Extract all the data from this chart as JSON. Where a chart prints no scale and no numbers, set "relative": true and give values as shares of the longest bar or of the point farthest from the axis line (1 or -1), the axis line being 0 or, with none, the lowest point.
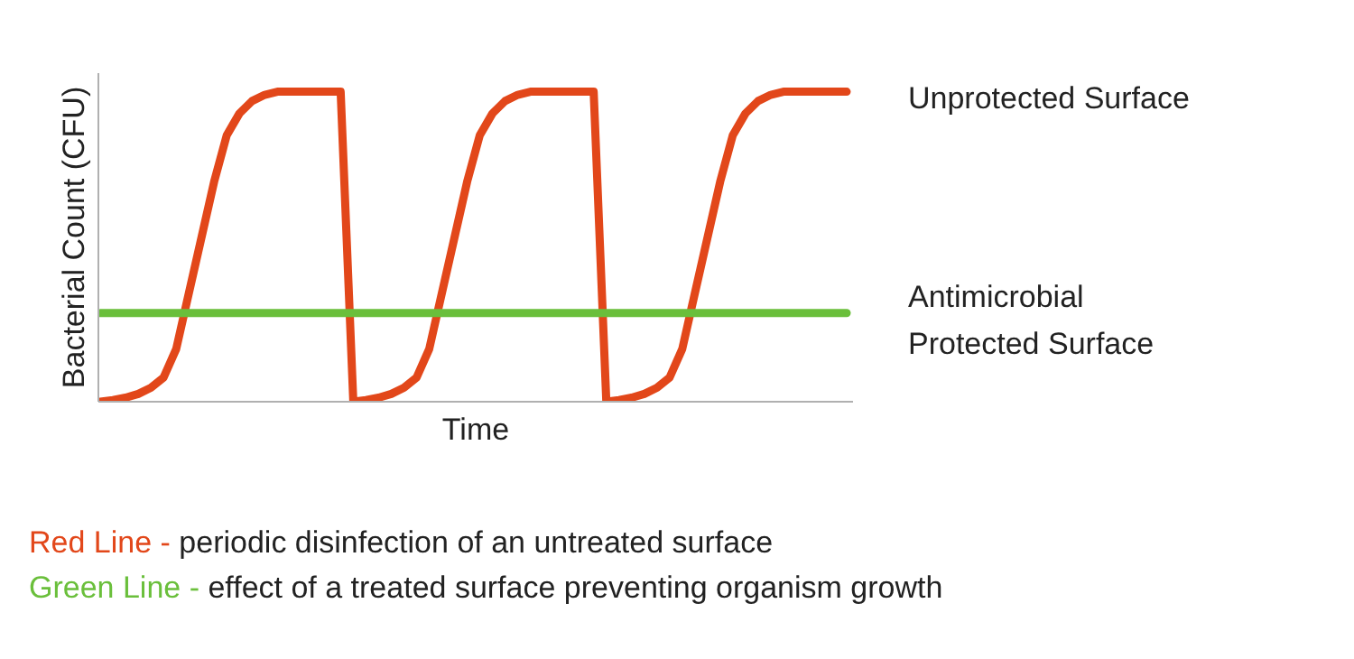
{
  "chart_data": {
    "type": "line",
    "relative": true,
    "xlabel": "Time",
    "ylabel": "Bacterial Count (CFU)",
    "categories": [
      null,
      null,
      null,
      null,
      null,
      null,
      null,
      null,
      null,
      null,
      null,
      null,
      null,
      null,
      null,
      null,
      null,
      null,
      null,
      null,
      null,
      null,
      null,
      null,
      null,
      null,
      null,
      null,
      null,
      null,
      null,
      null,
      null,
      null,
      null,
      null,
      null,
      null,
      null,
      null,
      null,
      null,
      null,
      null,
      null,
      null,
      null,
      null,
      null,
      null,
      null,
      null,
      null,
      null,
      null,
      null,
      null,
      null,
      null,
      null
    ],
    "series": [
      {
        "name": "Unprotected Surface",
        "color": "#e2471a",
        "values": [
          0,
          0.005,
          0.013,
          0.025,
          0.045,
          0.078,
          0.17,
          0.35,
          0.53,
          0.71,
          0.86,
          0.93,
          0.97,
          0.99,
          1,
          1,
          1,
          1,
          1,
          1,
          0,
          0.005,
          0.013,
          0.025,
          0.045,
          0.078,
          0.17,
          0.35,
          0.53,
          0.71,
          0.86,
          0.93,
          0.97,
          0.99,
          1,
          1,
          1,
          1,
          1,
          1,
          0,
          0.005,
          0.013,
          0.025,
          0.045,
          0.078,
          0.17,
          0.35,
          0.53,
          0.71,
          0.86,
          0.93,
          0.97,
          0.99,
          1,
          1,
          1,
          1,
          1,
          1
        ]
      },
      {
        "name": "Antimicrobial Protected Surface",
        "color": "#6abf3b",
        "values": [
          0.286,
          0.286,
          0.286,
          0.286,
          0.286,
          0.286,
          0.286,
          0.286,
          0.286,
          0.286,
          0.286,
          0.286,
          0.286,
          0.286,
          0.286,
          0.286,
          0.286,
          0.286,
          0.286,
          0.286,
          0.286,
          0.286,
          0.286,
          0.286,
          0.286,
          0.286,
          0.286,
          0.286,
          0.286,
          0.286,
          0.286,
          0.286,
          0.286,
          0.286,
          0.286,
          0.286,
          0.286,
          0.286,
          0.286,
          0.286,
          0.286,
          0.286,
          0.286,
          0.286,
          0.286,
          0.286,
          0.286,
          0.286,
          0.286,
          0.286,
          0.286,
          0.286,
          0.286,
          0.286,
          0.286,
          0.286,
          0.286,
          0.286,
          0.286,
          0.286
        ]
      }
    ],
    "annotations": [
      "Red Line - periodic disinfection of an untreated surface",
      "Green Line - effect of a treated surface preventing organism growth"
    ]
  }
}
